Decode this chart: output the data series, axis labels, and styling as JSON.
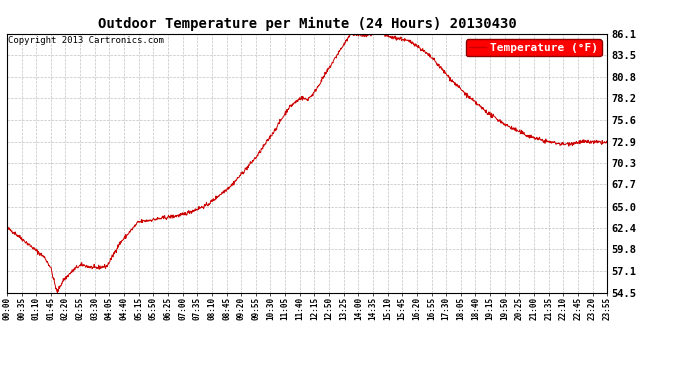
{
  "title": "Outdoor Temperature per Minute (24 Hours) 20130430",
  "copyright": "Copyright 2013 Cartronics.com",
  "legend_label": "Temperature (°F)",
  "line_color": "#cc0000",
  "background_color": "#ffffff",
  "grid_color": "#999999",
  "yticks": [
    54.5,
    57.1,
    59.8,
    62.4,
    65.0,
    67.7,
    70.3,
    72.9,
    75.6,
    78.2,
    80.8,
    83.5,
    86.1
  ],
  "ymin": 54.5,
  "ymax": 86.1,
  "xtick_labels": [
    "00:00",
    "00:35",
    "01:10",
    "01:45",
    "02:20",
    "02:55",
    "03:30",
    "04:05",
    "04:40",
    "05:15",
    "05:50",
    "06:25",
    "07:00",
    "07:35",
    "08:10",
    "08:45",
    "09:20",
    "09:55",
    "10:30",
    "11:05",
    "11:40",
    "12:15",
    "12:50",
    "13:25",
    "14:00",
    "14:35",
    "15:10",
    "15:45",
    "16:20",
    "16:55",
    "17:30",
    "18:05",
    "18:40",
    "19:15",
    "19:50",
    "20:25",
    "21:00",
    "21:35",
    "22:10",
    "22:45",
    "23:20",
    "23:55"
  ],
  "figsize": [
    6.9,
    3.75
  ],
  "dpi": 100
}
